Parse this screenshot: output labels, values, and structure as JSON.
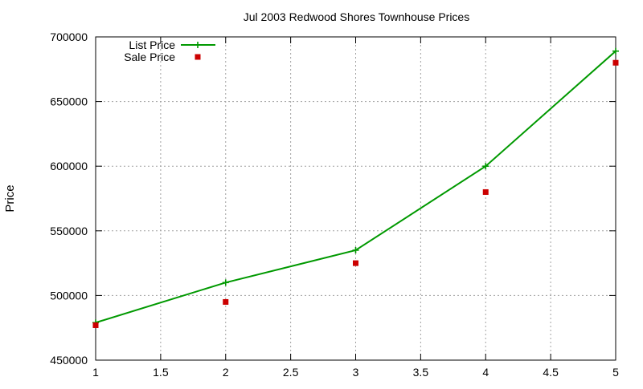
{
  "chart_data": {
    "type": "line",
    "title": "Jul 2003 Redwood Shores Townhouse Prices",
    "xlabel": "",
    "ylabel": "Price",
    "xlim": [
      1,
      5
    ],
    "ylim": [
      450000,
      700000
    ],
    "xticks": [
      {
        "value": 1,
        "label": "1"
      },
      {
        "value": 1.5,
        "label": "1.5"
      },
      {
        "value": 2,
        "label": "2"
      },
      {
        "value": 2.5,
        "label": "2.5"
      },
      {
        "value": 3,
        "label": "3"
      },
      {
        "value": 3.5,
        "label": "3.5"
      },
      {
        "value": 4,
        "label": "4"
      },
      {
        "value": 4.5,
        "label": "4.5"
      },
      {
        "value": 5,
        "label": "5"
      }
    ],
    "yticks": [
      {
        "value": 450000,
        "label": "450000"
      },
      {
        "value": 500000,
        "label": "500000"
      },
      {
        "value": 550000,
        "label": "550000"
      },
      {
        "value": 600000,
        "label": "600000"
      },
      {
        "value": 650000,
        "label": "650000"
      },
      {
        "value": 700000,
        "label": "700000"
      }
    ],
    "grid": true,
    "legend_position": "top-left",
    "series": [
      {
        "name": "List Price",
        "style": "linespoints",
        "marker": "plus",
        "color": "#009900",
        "x": [
          1,
          2,
          3,
          4,
          5
        ],
        "y": [
          479000,
          510000,
          535000,
          600000,
          689000
        ]
      },
      {
        "name": "Sale Price",
        "style": "points",
        "marker": "square",
        "color": "#cc0000",
        "x": [
          1,
          2,
          3,
          4,
          5
        ],
        "y": [
          477000,
          495000,
          525000,
          580000,
          680000
        ]
      }
    ]
  }
}
